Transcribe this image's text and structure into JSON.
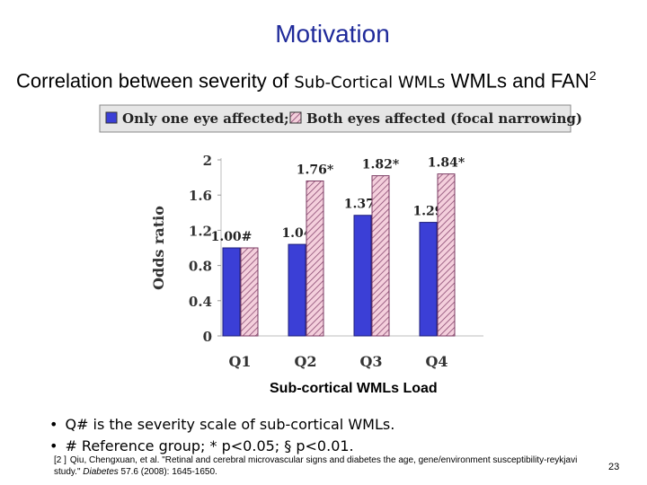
{
  "slide": {
    "title": "Motivation",
    "subtitle_start": "Correlation between severity of ",
    "subtitle_mid": "Sub-Cortical WMLs",
    "subtitle_end": " WMLs and FAN",
    "subtitle_sup": "2",
    "x_caption": "Sub-cortical WMLs Load",
    "bullets": [
      "Q# is the severity scale of sub-cortical WMLs.",
      "# Reference group; * p<0.05; § p<0.01."
    ],
    "reference_index": "[2 ]",
    "reference_pre": "Qiu, Chengxuan, et al. \"Retinal and cerebral microvascular signs and diabetes the age, gene/environment susceptibility-reykjavi study.\"",
    "reference_journal": "Diabetes",
    "reference_post": "57.6 (2008): 1645-1650.",
    "page_number": "23"
  },
  "chart_data": {
    "type": "bar",
    "categories": [
      "Q1",
      "Q2",
      "Q3",
      "Q4"
    ],
    "series": [
      {
        "name": "Only one eye affected;",
        "values": [
          1.0,
          1.04,
          1.37,
          1.29
        ],
        "labels": [
          "1.00#",
          "1.04",
          "1.37*",
          "1.29"
        ],
        "color": "#3b3fd6"
      },
      {
        "name": "Both eyes affected (focal narrowing)",
        "values": [
          1.0,
          1.76,
          1.82,
          1.84
        ],
        "labels": [
          "",
          "1.76*",
          "1.82*",
          "1.84*"
        ],
        "color": "#f2c8d8"
      }
    ],
    "ylabel": "Odds ratio",
    "ylim": [
      0,
      2
    ],
    "yticks": [
      "0",
      "0.4",
      "0.8",
      "1.2",
      "1.6",
      "2"
    ],
    "legend_position": "top",
    "grid": false
  }
}
